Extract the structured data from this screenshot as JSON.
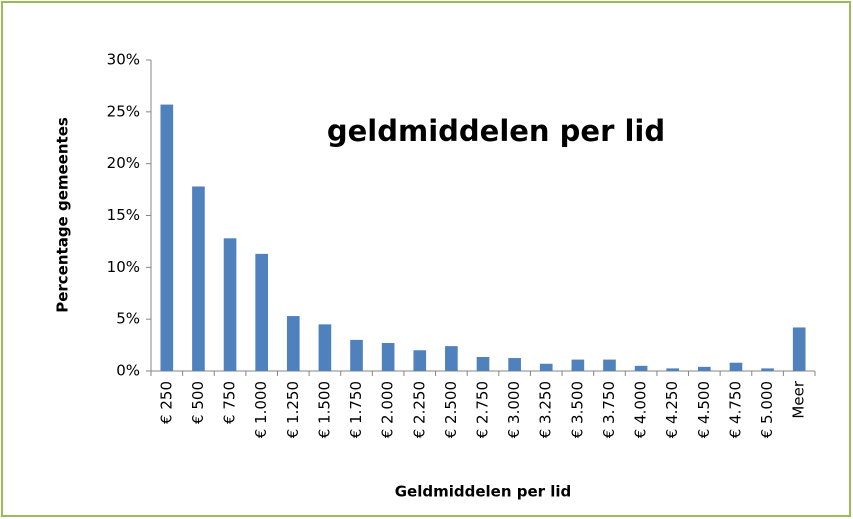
{
  "chart_data": {
    "type": "bar",
    "title": "geldmiddelen per lid",
    "x_label": "Geldmiddelen per lid",
    "y_label": "Percentage gemeentes",
    "categories": [
      "€ 250",
      "€ 500",
      "€ 750",
      "€ 1.000",
      "€ 1.250",
      "€ 1.500",
      "€ 1.750",
      "€ 2.000",
      "€ 2.250",
      "€ 2.500",
      "€ 2.750",
      "€ 3.000",
      "€ 3.250",
      "€ 3.500",
      "€ 3.750",
      "€ 4.000",
      "€ 4.250",
      "€ 4.500",
      "€ 4.750",
      "€ 5.000",
      "Meer"
    ],
    "values": [
      25.7,
      17.8,
      12.8,
      11.3,
      5.3,
      4.5,
      3.0,
      2.7,
      2.0,
      2.4,
      1.35,
      1.25,
      0.7,
      1.1,
      1.1,
      0.5,
      0.25,
      0.4,
      0.8,
      0.25,
      4.2
    ],
    "color": "#4f81bd",
    "ylim": [
      0,
      30
    ],
    "yticks": [
      {
        "value": 0,
        "label": "0%"
      },
      {
        "value": 5,
        "label": "5%"
      },
      {
        "value": 10,
        "label": "10%"
      },
      {
        "value": 15,
        "label": "15%"
      },
      {
        "value": 20,
        "label": "20%"
      },
      {
        "value": 25,
        "label": "25%"
      },
      {
        "value": 30,
        "label": "30%"
      }
    ],
    "grid": false
  }
}
